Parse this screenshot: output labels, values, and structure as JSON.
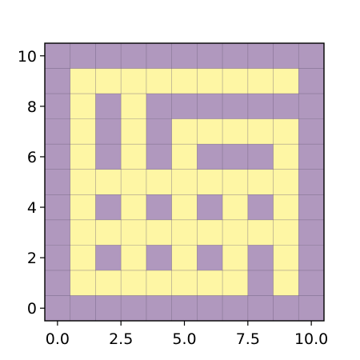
{
  "chart_data": {
    "type": "heatmap",
    "title": "",
    "xlabel": "",
    "ylabel": "",
    "xlim": [
      -0.5,
      10.5
    ],
    "ylim": [
      -0.5,
      10.5
    ],
    "x_ticks": [
      0,
      2.5,
      5,
      7.5,
      10
    ],
    "x_tick_labels": [
      "0.0",
      "2.5",
      "5.0",
      "7.5",
      "10.0"
    ],
    "y_ticks": [
      0,
      2,
      4,
      6,
      8,
      10
    ],
    "y_tick_labels": [
      "0",
      "2",
      "4",
      "6",
      "8",
      "10"
    ],
    "grid": true,
    "grid_color": "#5a4a6a",
    "colors": {
      "0": "#b098be",
      "1": "#fef6a4"
    },
    "rows_top_to_bottom": [
      [
        0,
        0,
        0,
        0,
        0,
        0,
        0,
        0,
        0,
        0,
        0
      ],
      [
        0,
        1,
        1,
        1,
        1,
        1,
        1,
        1,
        1,
        1,
        0
      ],
      [
        0,
        1,
        0,
        1,
        0,
        0,
        0,
        0,
        0,
        0,
        0
      ],
      [
        0,
        1,
        0,
        1,
        0,
        1,
        1,
        1,
        1,
        1,
        0
      ],
      [
        0,
        1,
        0,
        1,
        0,
        1,
        0,
        0,
        0,
        1,
        0
      ],
      [
        0,
        1,
        1,
        1,
        1,
        1,
        1,
        1,
        1,
        1,
        0
      ],
      [
        0,
        1,
        0,
        1,
        0,
        1,
        0,
        1,
        0,
        1,
        0
      ],
      [
        0,
        1,
        1,
        1,
        1,
        1,
        1,
        1,
        1,
        1,
        0
      ],
      [
        0,
        1,
        0,
        1,
        0,
        1,
        0,
        1,
        0,
        1,
        0
      ],
      [
        0,
        1,
        1,
        1,
        1,
        1,
        1,
        1,
        0,
        1,
        0
      ],
      [
        0,
        0,
        0,
        0,
        0,
        0,
        0,
        0,
        0,
        0,
        0
      ]
    ]
  }
}
